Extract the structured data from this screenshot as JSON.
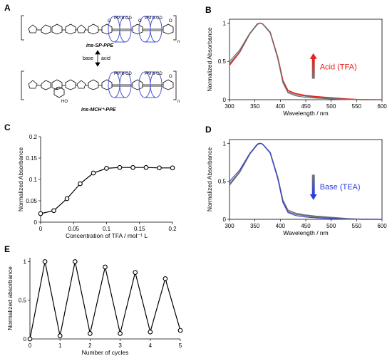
{
  "panel_letters": {
    "a": "A",
    "b": "B",
    "c": "C",
    "d": "D",
    "e": "E"
  },
  "colors": {
    "acid_red": "#e8211c",
    "base_blue": "#2b3ce0",
    "cd_blue": "#4a56d8",
    "trace_gray": "#6e6e6e",
    "black": "#000000"
  },
  "scheme": {
    "top_compound": "ins-SP-PPE",
    "bottom_compound": "ins-MCH⁺-PPE",
    "arrow_left": "base",
    "arrow_right": "acid",
    "cd_label": "PM α-CD",
    "subscript_n": "n",
    "ho": "HO",
    "o": "O",
    "icon": "molecular-structure"
  },
  "chart_data": [
    {
      "panel": "B",
      "type": "line",
      "xlabel": "Wavelength / nm",
      "ylabel": "Normalized Absorbance",
      "xlim": [
        300,
        600
      ],
      "ylim": [
        0,
        1.05
      ],
      "xticks": [
        300,
        350,
        400,
        450,
        500,
        550,
        600
      ],
      "yticks": [
        0,
        0.5,
        1
      ],
      "ytick_labels": [
        "0",
        "0.5",
        "1"
      ],
      "annotation": "Acid (TFA)",
      "annotation_color": "#e8211c",
      "arrow": "up",
      "series": [
        {
          "color": "#e8211c",
          "points": [
            [
              300,
              0.45
            ],
            [
              320,
              0.62
            ],
            [
              340,
              0.86
            ],
            [
              355,
              0.99
            ],
            [
              360,
              1.0
            ],
            [
              365,
              0.99
            ],
            [
              380,
              0.88
            ],
            [
              395,
              0.55
            ],
            [
              405,
              0.25
            ],
            [
              415,
              0.12
            ],
            [
              430,
              0.08
            ],
            [
              450,
              0.055
            ],
            [
              470,
              0.04
            ],
            [
              500,
              0.025
            ],
            [
              530,
              0.01
            ],
            [
              560,
              0.0
            ],
            [
              600,
              0.0
            ]
          ]
        },
        {
          "color": "#6e6e6e",
          "points": [
            [
              300,
              0.5
            ],
            [
              320,
              0.65
            ],
            [
              340,
              0.87
            ],
            [
              355,
              0.99
            ],
            [
              360,
              1.0
            ],
            [
              365,
              0.99
            ],
            [
              380,
              0.87
            ],
            [
              395,
              0.53
            ],
            [
              405,
              0.22
            ],
            [
              415,
              0.09
            ],
            [
              430,
              0.05
            ],
            [
              450,
              0.03
            ],
            [
              470,
              0.02
            ],
            [
              500,
              0.01
            ],
            [
              530,
              0.0
            ],
            [
              600,
              0.0
            ]
          ]
        },
        {
          "color": "#6e6e6e",
          "points": [
            [
              300,
              0.47
            ],
            [
              320,
              0.63
            ],
            [
              340,
              0.86
            ],
            [
              355,
              0.98
            ],
            [
              360,
              1.0
            ],
            [
              365,
              0.99
            ],
            [
              380,
              0.88
            ],
            [
              395,
              0.54
            ],
            [
              405,
              0.23
            ],
            [
              415,
              0.1
            ],
            [
              430,
              0.065
            ],
            [
              450,
              0.045
            ],
            [
              470,
              0.03
            ],
            [
              500,
              0.018
            ],
            [
              530,
              0.005
            ],
            [
              600,
              0.0
            ]
          ]
        }
      ]
    },
    {
      "panel": "C",
      "type": "line",
      "xlabel": "Concentration of TFA / mol⁻¹ L",
      "ylabel": "Normalized Absorbance",
      "xlim": [
        0,
        0.2
      ],
      "ylim": [
        0,
        0.2
      ],
      "xticks": [
        0,
        0.05,
        0.1,
        0.15,
        0.2
      ],
      "xtick_labels": [
        "0",
        "0.05",
        "0.1",
        "0.15",
        "0.2"
      ],
      "yticks": [
        0,
        0.05,
        0.1,
        0.15,
        0.2
      ],
      "ytick_labels": [
        "0",
        "0.05",
        "0.1",
        "0.15",
        "0.2"
      ],
      "x": [
        0,
        0.02,
        0.04,
        0.06,
        0.08,
        0.1,
        0.12,
        0.14,
        0.16,
        0.18,
        0.2
      ],
      "values": [
        0.02,
        0.027,
        0.055,
        0.09,
        0.115,
        0.126,
        0.128,
        0.128,
        0.128,
        0.127,
        0.127
      ]
    },
    {
      "panel": "D",
      "type": "line",
      "xlabel": "Wavelength / nm",
      "ylabel": "Normalized Absorbance",
      "xlim": [
        300,
        600
      ],
      "ylim": [
        0,
        1.05
      ],
      "xticks": [
        300,
        350,
        400,
        450,
        500,
        550,
        600
      ],
      "yticks": [
        0,
        0.5,
        1
      ],
      "ytick_labels": [
        "0",
        "0.5",
        "1"
      ],
      "annotation": "Base (TEA)",
      "annotation_color": "#2b3ce0",
      "arrow": "down",
      "series": [
        {
          "color": "#6e6e6e",
          "points": [
            [
              300,
              0.45
            ],
            [
              320,
              0.62
            ],
            [
              340,
              0.86
            ],
            [
              355,
              0.99
            ],
            [
              360,
              1.0
            ],
            [
              365,
              0.99
            ],
            [
              380,
              0.88
            ],
            [
              395,
              0.55
            ],
            [
              405,
              0.25
            ],
            [
              415,
              0.12
            ],
            [
              430,
              0.08
            ],
            [
              450,
              0.055
            ],
            [
              470,
              0.04
            ],
            [
              500,
              0.025
            ],
            [
              530,
              0.01
            ],
            [
              560,
              0.0
            ],
            [
              600,
              0.0
            ]
          ]
        },
        {
          "color": "#6e6e6e",
          "points": [
            [
              300,
              0.47
            ],
            [
              320,
              0.63
            ],
            [
              340,
              0.86
            ],
            [
              355,
              0.98
            ],
            [
              360,
              1.0
            ],
            [
              365,
              0.99
            ],
            [
              380,
              0.88
            ],
            [
              395,
              0.54
            ],
            [
              405,
              0.23
            ],
            [
              415,
              0.1
            ],
            [
              430,
              0.065
            ],
            [
              450,
              0.045
            ],
            [
              470,
              0.03
            ],
            [
              500,
              0.018
            ],
            [
              530,
              0.005
            ],
            [
              600,
              0.0
            ]
          ]
        },
        {
          "color": "#2b3ce0",
          "points": [
            [
              300,
              0.5
            ],
            [
              320,
              0.65
            ],
            [
              340,
              0.87
            ],
            [
              355,
              0.99
            ],
            [
              360,
              1.0
            ],
            [
              365,
              0.99
            ],
            [
              380,
              0.87
            ],
            [
              395,
              0.53
            ],
            [
              405,
              0.22
            ],
            [
              415,
              0.09
            ],
            [
              430,
              0.05
            ],
            [
              450,
              0.03
            ],
            [
              470,
              0.02
            ],
            [
              500,
              0.01
            ],
            [
              530,
              0.0
            ],
            [
              600,
              0.0
            ]
          ]
        }
      ]
    },
    {
      "panel": "E",
      "type": "line",
      "xlabel": "Number of cycles",
      "ylabel": "Normalized absorbance",
      "xlim": [
        0,
        5
      ],
      "ylim": [
        0,
        1.05
      ],
      "xticks": [
        0,
        1,
        2,
        3,
        4,
        5
      ],
      "xtick_labels": [
        "0",
        "1",
        "2",
        "3",
        "4",
        "5"
      ],
      "yticks": [
        0,
        0.5,
        1
      ],
      "ytick_labels": [
        "0",
        "0.5",
        "1"
      ],
      "x": [
        0,
        0.5,
        1,
        1.5,
        2,
        2.5,
        3,
        3.5,
        4,
        4.5,
        5
      ],
      "values": [
        0.0,
        1.0,
        0.04,
        1.0,
        0.07,
        0.93,
        0.07,
        0.86,
        0.09,
        0.78,
        0.11
      ]
    }
  ]
}
